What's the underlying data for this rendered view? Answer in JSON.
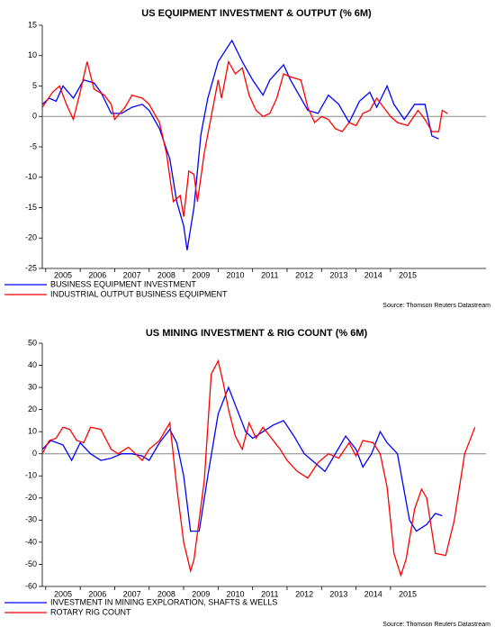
{
  "chart_data": [
    {
      "type": "line",
      "title": "US EQUIPMENT INVESTMENT & OUTPUT (% 6M)",
      "source": "Source: Thomson Reuters Datastream",
      "xlim": [
        2004.9,
        2017.77
      ],
      "xticks": [
        2005,
        2006,
        2007,
        2008,
        2009,
        2010,
        2011,
        2012,
        2013,
        2014,
        2015
      ],
      "ylim": [
        -25,
        15
      ],
      "yticks": [
        15,
        10,
        5,
        0,
        -5,
        -10,
        -15,
        -20,
        -25
      ],
      "zero_line": true,
      "series": [
        {
          "name": "BUSINESS EQUIPMENT INVESTMENT",
          "color": "#0000ff",
          "x": [
            2004.9,
            2005.1,
            2005.3,
            2005.5,
            2005.8,
            2006.1,
            2006.4,
            2006.6,
            2006.9,
            2007.2,
            2007.5,
            2007.8,
            2008.0,
            2008.3,
            2008.6,
            2008.8,
            2009.0,
            2009.1,
            2009.3,
            2009.5,
            2009.7,
            2010.0,
            2010.4,
            2010.7,
            2011.0,
            2011.3,
            2011.5,
            2011.9,
            2012.1,
            2012.3,
            2012.6,
            2012.9,
            2013.2,
            2013.5,
            2013.8,
            2014.1,
            2014.4,
            2014.6,
            2014.9,
            2015.1,
            2015.4,
            2015.7,
            2016.0,
            2016.2,
            2016.4
          ],
          "values": [
            2,
            3,
            2.5,
            5,
            3,
            6,
            5.5,
            4,
            0.5,
            0.5,
            1.5,
            2,
            1,
            -2,
            -7,
            -14,
            -18,
            -22,
            -15,
            -3,
            3,
            9,
            12.5,
            9,
            6,
            3.5,
            6,
            8.5,
            6,
            4,
            1,
            0.5,
            3.5,
            2,
            -1,
            2.5,
            4,
            1.5,
            5,
            2,
            -0.5,
            2,
            2,
            -3.2,
            -3.7
          ]
        },
        {
          "name": "INDUSTRIAL OUTPUT BUSINESS EQUIPMENT",
          "color": "#ff0000",
          "x": [
            2004.9,
            2005.2,
            2005.4,
            2005.6,
            2005.8,
            2006.0,
            2006.2,
            2006.4,
            2006.7,
            2006.9,
            2007.0,
            2007.3,
            2007.5,
            2007.8,
            2008.0,
            2008.3,
            2008.5,
            2008.7,
            2008.9,
            2009.0,
            2009.15,
            2009.3,
            2009.4,
            2009.6,
            2009.8,
            2010.0,
            2010.1,
            2010.3,
            2010.5,
            2010.7,
            2010.9,
            2011.1,
            2011.3,
            2011.5,
            2011.7,
            2011.9,
            2012.1,
            2012.4,
            2012.6,
            2012.8,
            2013.0,
            2013.2,
            2013.4,
            2013.6,
            2013.8,
            2014.0,
            2014.2,
            2014.4,
            2014.6,
            2014.8,
            2015.0,
            2015.2,
            2015.5,
            2015.8,
            2016.0,
            2016.2,
            2016.4,
            2016.5,
            2016.65
          ],
          "values": [
            1.5,
            4,
            5,
            2,
            -0.5,
            4,
            9,
            4.5,
            3.5,
            2,
            -0.5,
            1.5,
            3.5,
            3,
            2,
            -1,
            -6,
            -14,
            -13,
            -16.5,
            -9,
            -9.5,
            -14,
            -6,
            0,
            6,
            3,
            9,
            7,
            8,
            3.5,
            1,
            0,
            0.5,
            3,
            7,
            6.5,
            6,
            1.5,
            -1,
            0,
            -0.5,
            -2,
            -2.5,
            -1,
            -1.5,
            0.5,
            1,
            3,
            1.5,
            0,
            -1,
            -1.5,
            1,
            -0.5,
            -2.5,
            -2.5,
            1,
            0.5
          ]
        }
      ]
    },
    {
      "type": "line",
      "title": "US MINING INVESTMENT & RIG COUNT (% 6M)",
      "source": "Source: Thomson Reuters Datastream",
      "xlim": [
        2004.9,
        2017.77
      ],
      "xticks": [
        2005,
        2006,
        2007,
        2008,
        2009,
        2010,
        2011,
        2012,
        2013,
        2014,
        2015
      ],
      "ylim": [
        -60,
        50
      ],
      "yticks": [
        50,
        40,
        30,
        20,
        10,
        0,
        -10,
        -20,
        -30,
        -40,
        -50,
        -60
      ],
      "zero_line": true,
      "series": [
        {
          "name": "INVESTMENT IN MINING EXPLORATION, SHAFTS & WELLS",
          "color": "#0000ff",
          "x": [
            2004.9,
            2005.15,
            2005.5,
            2005.75,
            2006.0,
            2006.3,
            2006.6,
            2006.9,
            2007.2,
            2007.5,
            2007.8,
            2008.0,
            2008.3,
            2008.6,
            2008.8,
            2009.0,
            2009.2,
            2009.45,
            2009.7,
            2010.0,
            2010.3,
            2010.5,
            2010.8,
            2011.0,
            2011.3,
            2011.6,
            2011.9,
            2012.2,
            2012.5,
            2012.8,
            2013.1,
            2013.4,
            2013.7,
            2014.0,
            2014.2,
            2014.45,
            2014.7,
            2014.9,
            2015.2,
            2015.55,
            2015.75,
            2016.05,
            2016.3,
            2016.5
          ],
          "values": [
            2,
            6,
            4,
            -3,
            5,
            0,
            -3,
            -2,
            0,
            0,
            -1,
            -3,
            5,
            11,
            5,
            -10,
            -35,
            -35,
            -10,
            18,
            30,
            22,
            10,
            7,
            10,
            13,
            15,
            8,
            0,
            -4,
            -8,
            0,
            8,
            2,
            -6,
            0,
            10,
            5,
            0,
            -30,
            -35,
            -32,
            -27,
            -28
          ]
        },
        {
          "name": "ROTARY RIG COUNT",
          "color": "#ff0000",
          "x": [
            2004.9,
            2005.1,
            2005.3,
            2005.5,
            2005.7,
            2005.9,
            2006.1,
            2006.3,
            2006.6,
            2006.9,
            2007.1,
            2007.4,
            2007.6,
            2007.8,
            2008.0,
            2008.3,
            2008.6,
            2008.8,
            2009.0,
            2009.2,
            2009.3,
            2009.6,
            2009.8,
            2010.0,
            2010.15,
            2010.3,
            2010.5,
            2010.7,
            2010.9,
            2011.1,
            2011.3,
            2011.5,
            2011.8,
            2012.0,
            2012.3,
            2012.6,
            2012.9,
            2013.2,
            2013.5,
            2013.8,
            2014.0,
            2014.2,
            2014.5,
            2014.7,
            2014.9,
            2015.1,
            2015.3,
            2015.45,
            2015.7,
            2015.9,
            2016.05,
            2016.3,
            2016.6,
            2016.85,
            2017.15,
            2017.45
          ],
          "values": [
            0,
            6,
            7,
            12,
            11,
            6,
            5,
            12,
            11,
            2,
            0,
            3,
            0,
            -3,
            2,
            6,
            14,
            -15,
            -40,
            -53,
            -48,
            -12,
            36,
            42,
            32,
            20,
            8,
            2,
            14,
            7,
            12,
            8,
            2,
            -3,
            -8,
            -11,
            -4,
            0,
            -2,
            5,
            -1,
            6,
            5,
            0,
            -15,
            -45,
            -55,
            -48,
            -25,
            -16,
            -20,
            -45,
            -46,
            -30,
            0,
            12
          ]
        }
      ]
    }
  ]
}
